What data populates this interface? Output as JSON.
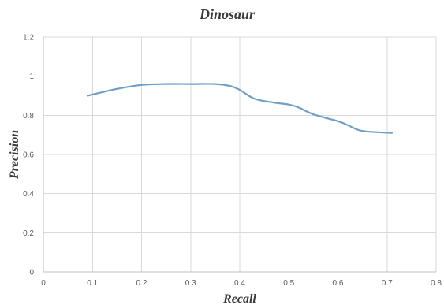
{
  "chart_data": {
    "type": "line",
    "title": "Dinosaur",
    "xlabel": "Recall",
    "ylabel": "Precision",
    "xlim": [
      0,
      0.8
    ],
    "ylim": [
      0,
      1.2
    ],
    "x_ticks": [
      "0",
      "0.1",
      "0.2",
      "0.3",
      "0.4",
      "0.5",
      "0.6",
      "0.7",
      "0.8"
    ],
    "y_ticks": [
      "0",
      "0.2",
      "0.4",
      "0.6",
      "0.8",
      "1",
      "1.2"
    ],
    "grid": "vertical-and-horizontal",
    "legend": "none",
    "series": [
      {
        "color": "#6f9fc7",
        "x": [
          0.09,
          0.15,
          0.2,
          0.25,
          0.3,
          0.35,
          0.38,
          0.4,
          0.43,
          0.47,
          0.5,
          0.52,
          0.55,
          0.6,
          0.62,
          0.65,
          0.71
        ],
        "y": [
          0.9,
          0.935,
          0.955,
          0.96,
          0.96,
          0.96,
          0.95,
          0.93,
          0.885,
          0.865,
          0.855,
          0.84,
          0.805,
          0.77,
          0.75,
          0.72,
          0.71
        ]
      }
    ]
  }
}
